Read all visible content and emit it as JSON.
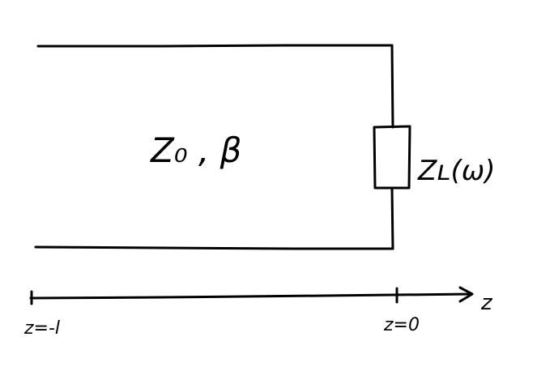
{
  "diagram": {
    "line_label": "Z₀ , β",
    "load_label": "Zʟ(ω)",
    "axis_label": "z",
    "ticks": [
      {
        "label": "z=-l"
      },
      {
        "label": "z=0"
      }
    ]
  }
}
